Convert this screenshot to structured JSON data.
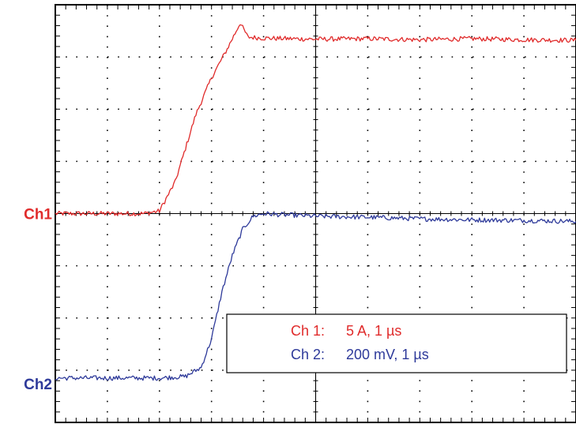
{
  "chart_data": {
    "type": "line",
    "title": "",
    "xlabel": "",
    "ylabel": "",
    "grid": true,
    "grid_style": "dotted",
    "divisions": {
      "x": 10,
      "y": 8
    },
    "xlim": [
      0,
      10
    ],
    "ylim": [
      0,
      8
    ],
    "legend_placement": "bottom-right",
    "channel_markers": [
      {
        "text": "Ch1",
        "color": "#e02b2b",
        "level_div": 4.0
      },
      {
        "text": "Ch2",
        "color": "#2e3a9a",
        "level_div": 0.85
      }
    ],
    "legend": [
      {
        "channel": "Ch 1:",
        "setting": "5 A, 1 µs",
        "color": "#e02b2b"
      },
      {
        "channel": "Ch 2:",
        "setting": "200 mV, 1 µs",
        "color": "#2e3a9a"
      }
    ],
    "series": [
      {
        "color": "#e02b2b",
        "x": [
          0,
          1.0,
          1.7,
          2.0,
          2.3,
          2.7,
          3.0,
          3.3,
          3.55,
          3.7,
          4.0,
          5.0,
          6.0,
          7.0,
          8.0,
          9.0,
          10.0
        ],
        "y": [
          4.0,
          4.0,
          4.0,
          4.05,
          4.6,
          5.9,
          6.6,
          7.15,
          7.65,
          7.38,
          7.36,
          7.34,
          7.35,
          7.33,
          7.35,
          7.33,
          7.32
        ]
      },
      {
        "color": "#2e3a9a",
        "x": [
          0,
          1.0,
          2.0,
          2.5,
          2.8,
          3.0,
          3.2,
          3.4,
          3.6,
          3.8,
          4.0,
          4.3,
          5.0,
          6.0,
          7.0,
          8.0,
          9.0,
          10.0
        ],
        "y": [
          0.85,
          0.85,
          0.85,
          0.88,
          1.05,
          1.6,
          2.5,
          3.2,
          3.7,
          3.95,
          4.0,
          3.98,
          3.95,
          3.93,
          3.9,
          3.88,
          3.87,
          3.85
        ]
      }
    ]
  }
}
